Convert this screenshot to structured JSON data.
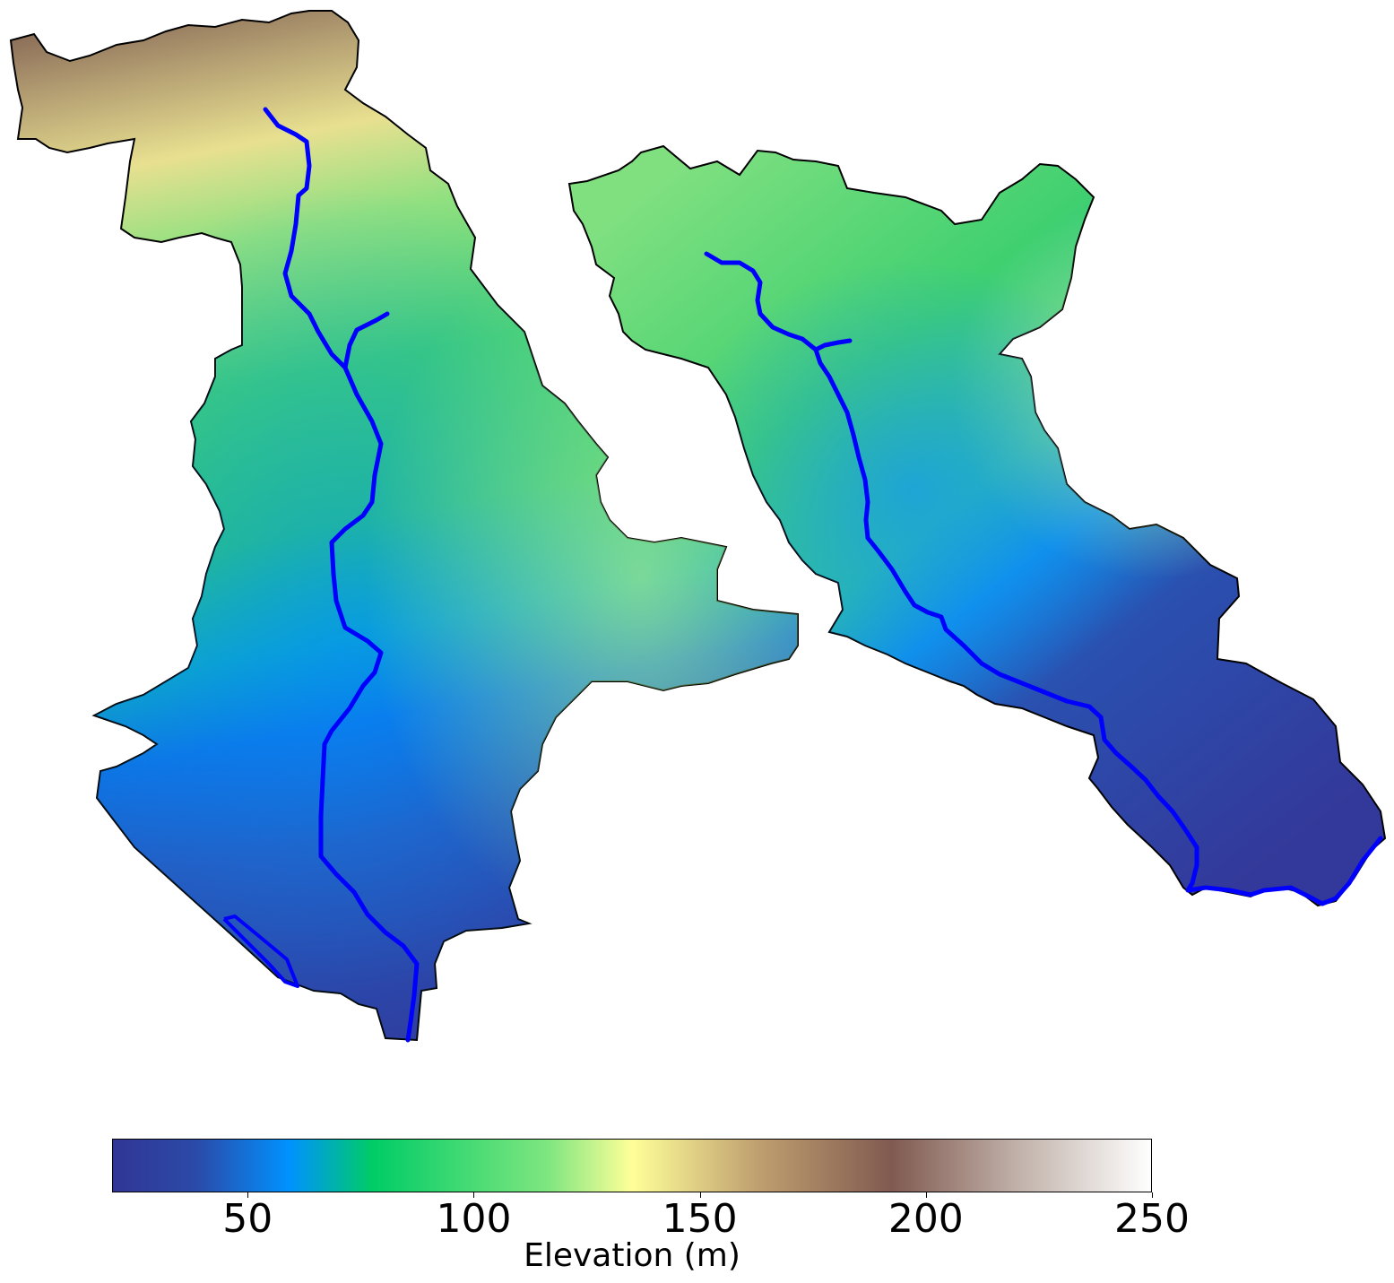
{
  "map": {
    "colormap": [
      "#313695",
      "#2b4aa8",
      "#0092ff",
      "#00cc66",
      "#80e680",
      "#ffff99",
      "#c0a070",
      "#805a50",
      "#c0b0a8",
      "#ffffff"
    ],
    "colormap_stops": [
      0.0,
      0.08,
      0.17,
      0.25,
      0.42,
      0.5,
      0.62,
      0.75,
      0.87,
      1.0
    ],
    "watercourse_color": "#0000ff",
    "boundary_color": "#000000"
  },
  "colorbar": {
    "label": "Elevation (m)",
    "min": 20,
    "max": 250,
    "ticks": [
      {
        "value": 50,
        "label": "50"
      },
      {
        "value": 100,
        "label": "100"
      },
      {
        "value": 150,
        "label": "150"
      },
      {
        "value": 200,
        "label": "200"
      },
      {
        "value": 250,
        "label": "250"
      }
    ]
  }
}
